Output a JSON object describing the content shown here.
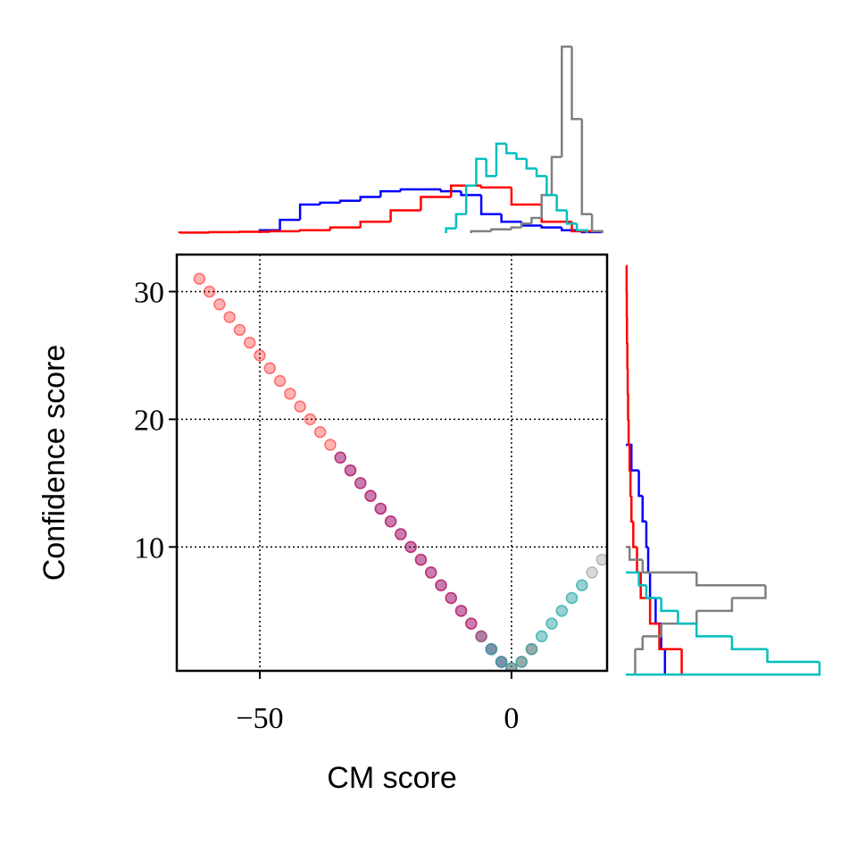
{
  "chart_data": [
    {
      "type": "scatter",
      "xlabel": "CM score",
      "ylabel": "Confidence score",
      "xlim": [
        -66.5,
        19
      ],
      "ylim": [
        0.3,
        32.9
      ],
      "xticks": [
        {
          "value": -50,
          "label": "−50"
        },
        0
      ],
      "yticks": [
        10,
        20,
        30
      ],
      "grid": true,
      "series": [
        {
          "color": "#0000ff",
          "x": [
            -34,
            -32,
            -30,
            -28,
            -26,
            -24,
            -22,
            -20,
            -18,
            -16,
            -14,
            -12,
            -10,
            -8,
            -6,
            -4,
            -2
          ],
          "y": [
            17,
            16,
            15,
            14,
            13,
            12,
            11,
            10,
            9,
            8,
            7,
            6,
            5,
            4,
            3,
            2,
            1
          ]
        },
        {
          "color": "#ff0000",
          "x": [
            -62,
            -60,
            -58,
            -56,
            -54,
            -52,
            -50,
            -48,
            -46,
            -44,
            -42,
            -40,
            -38,
            -36,
            -34,
            -32,
            -30,
            -28,
            -26,
            -24,
            -22,
            -20,
            -18,
            -16,
            -14,
            -12,
            -10,
            -8,
            -6,
            -4,
            -2,
            0,
            2,
            4
          ],
          "y": [
            31,
            30,
            29,
            28,
            27,
            26,
            25,
            24,
            23,
            22,
            21,
            20,
            19,
            18,
            17,
            16,
            15,
            14,
            13,
            12,
            11,
            10,
            9,
            8,
            7,
            6,
            5,
            4,
            3,
            2,
            1,
            0.5,
            1,
            2
          ]
        },
        {
          "color": "#808080",
          "x": [
            -6,
            -4,
            -2,
            0,
            2,
            4,
            6,
            8,
            10,
            12,
            14,
            16,
            18
          ],
          "y": [
            3,
            2,
            1,
            0.5,
            1,
            2,
            3,
            4,
            5,
            6,
            7,
            8,
            9
          ]
        },
        {
          "color": "#00bfbf",
          "x": [
            -4,
            -2,
            0,
            2,
            4,
            6,
            8,
            10,
            12,
            14
          ],
          "y": [
            2,
            1,
            0.5,
            1,
            2,
            3,
            4,
            5,
            6,
            7
          ]
        }
      ]
    },
    {
      "type": "histogram",
      "orientation": "vertical",
      "xlim": [
        -66.5,
        19
      ],
      "ylim": [
        0,
        100
      ],
      "series": [
        {
          "color": "#0000ff",
          "bins": [
            -50,
            -46,
            -42,
            -38,
            -34,
            -30,
            -26,
            -22,
            -18,
            -14,
            -10,
            -6,
            -2,
            2,
            6,
            10,
            14,
            18
          ],
          "counts": [
            1.5,
            7,
            15,
            16,
            17,
            19,
            22,
            23,
            23,
            22,
            20,
            10,
            6,
            4,
            3,
            1.5,
            0.5
          ]
        },
        {
          "color": "#ff0000",
          "bins": [
            -66,
            -60,
            -54,
            -48,
            -42,
            -36,
            -30,
            -24,
            -18,
            -12,
            -6,
            0,
            6,
            12,
            18
          ],
          "counts": [
            0.3,
            0.5,
            0.7,
            1,
            1.5,
            3,
            6,
            12,
            19,
            25,
            24,
            15,
            6,
            1
          ]
        },
        {
          "color": "#808080",
          "bins": [
            -8,
            -6,
            -4,
            -2,
            0,
            2,
            4,
            6,
            8,
            10,
            12,
            14,
            16,
            18
          ],
          "counts": [
            1,
            1,
            2,
            2,
            3,
            5,
            8,
            20,
            40,
            98,
            60,
            10,
            1
          ]
        },
        {
          "color": "#00bfbf",
          "bins": [
            -13,
            -11,
            -9,
            -7,
            -5,
            -3,
            -1,
            1,
            3,
            5,
            7,
            9,
            11,
            13,
            15
          ],
          "counts": [
            2.5,
            10,
            25,
            39,
            30,
            47,
            42,
            39,
            34,
            30,
            20,
            12,
            5,
            1.5
          ]
        }
      ]
    },
    {
      "type": "histogram",
      "orientation": "horizontal",
      "xlim": [
        0,
        105
      ],
      "ylim": [
        0.3,
        32.9
      ],
      "series": [
        {
          "color": "#0000ff",
          "bins": [
            0,
            2,
            4,
            6,
            8,
            10,
            12,
            14,
            16,
            18
          ],
          "counts": [
            21,
            19,
            16,
            13,
            12,
            11,
            9,
            7,
            3
          ]
        },
        {
          "color": "#ff0000",
          "bins": [
            0,
            2,
            4,
            6,
            8,
            10,
            12,
            14,
            16,
            18,
            20,
            22,
            24,
            26,
            28,
            30,
            32
          ],
          "counts": [
            30,
            18,
            13,
            8,
            6,
            4,
            3,
            2.5,
            2,
            1.5,
            1.2,
            1,
            0.8,
            0.6,
            0.5,
            0.4
          ]
        },
        {
          "color": "#808080",
          "bins": [
            0,
            1,
            2,
            3,
            4,
            5,
            6,
            7,
            8,
            9,
            10
          ],
          "counts": [
            5,
            5,
            9,
            19,
            38,
            57,
            75,
            38,
            9,
            2
          ]
        },
        {
          "color": "#00bfbf",
          "bins": [
            0,
            1,
            2,
            3,
            4,
            5,
            6,
            7,
            8
          ],
          "counts": [
            104,
            76,
            57,
            38,
            28,
            19,
            11,
            7
          ]
        }
      ]
    }
  ]
}
